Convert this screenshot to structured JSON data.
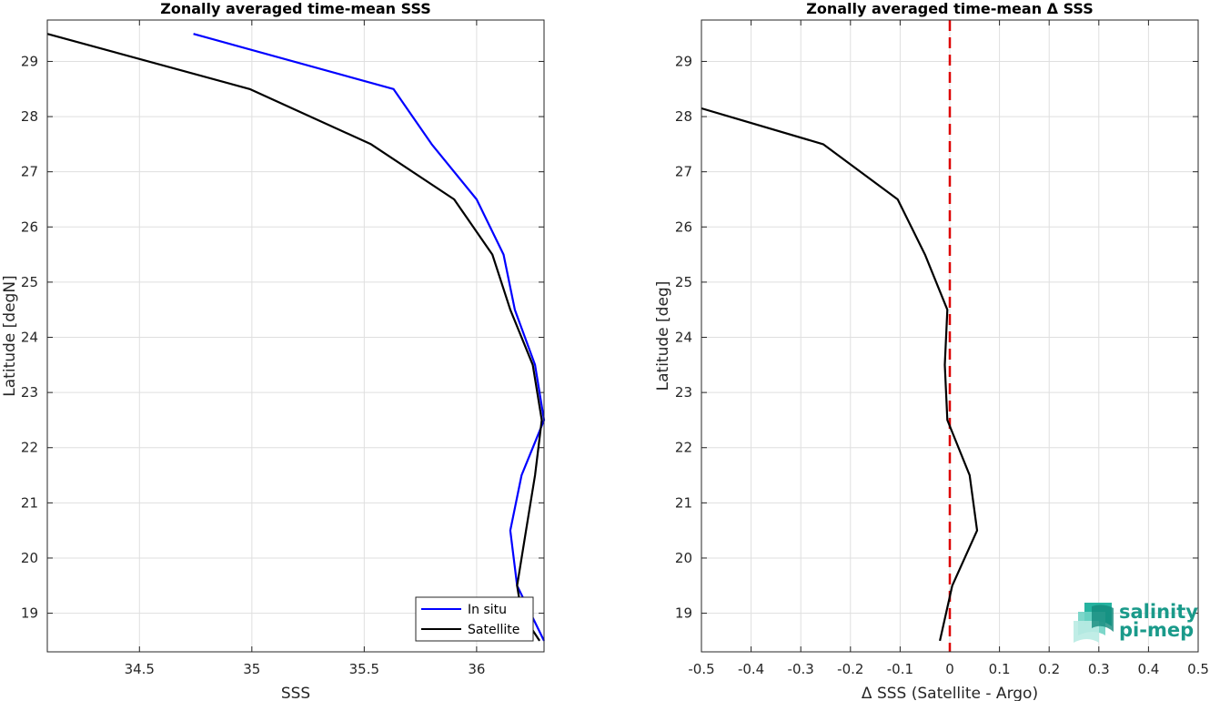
{
  "chart_data": [
    {
      "type": "line",
      "title": "Zonally averaged time-mean SSS",
      "xlabel": "SSS",
      "ylabel": "Latitude [degN]",
      "xlim": [
        34.09,
        36.3
      ],
      "ylim": [
        18.3,
        29.75
      ],
      "xticks": [
        "34.5",
        "35",
        "35.5",
        "36"
      ],
      "xtick_values": [
        34.5,
        35,
        35.5,
        36
      ],
      "yticks": [
        "19",
        "20",
        "21",
        "22",
        "23",
        "24",
        "25",
        "26",
        "27",
        "28",
        "29"
      ],
      "ytick_values": [
        19,
        20,
        21,
        22,
        23,
        24,
        25,
        26,
        27,
        28,
        29
      ],
      "grid": true,
      "legend_position": "bottom-right",
      "series": [
        {
          "name": "In situ",
          "color": "#0000ff",
          "points": [
            [
              34.74,
              29.5
            ],
            [
              35.63,
              28.5
            ],
            [
              35.8,
              27.5
            ],
            [
              36.0,
              26.5
            ],
            [
              36.12,
              25.5
            ],
            [
              36.17,
              24.5
            ],
            [
              36.26,
              23.5
            ],
            [
              36.3,
              22.5
            ],
            [
              36.2,
              21.5
            ],
            [
              36.15,
              20.5
            ],
            [
              36.18,
              19.5
            ],
            [
              36.3,
              18.5
            ]
          ]
        },
        {
          "name": "Satellite",
          "color": "#000000",
          "points": [
            [
              34.09,
              29.5
            ],
            [
              34.99,
              28.5
            ],
            [
              35.53,
              27.5
            ],
            [
              35.9,
              26.5
            ],
            [
              36.07,
              25.5
            ],
            [
              36.15,
              24.5
            ],
            [
              36.25,
              23.5
            ],
            [
              36.29,
              22.5
            ],
            [
              36.26,
              21.5
            ],
            [
              36.22,
              20.5
            ],
            [
              36.18,
              19.5
            ],
            [
              36.2,
              19.0
            ],
            [
              36.28,
              18.5
            ]
          ]
        }
      ]
    },
    {
      "type": "line",
      "title": "Zonally averaged time-mean Δ SSS",
      "xlabel": "Δ SSS (Satellite - Argo)",
      "ylabel": "Latitude [deg]",
      "xlim": [
        -0.5,
        0.5
      ],
      "ylim": [
        18.3,
        29.75
      ],
      "xticks": [
        "-0.5",
        "-0.4",
        "-0.3",
        "-0.2",
        "-0.1",
        "0",
        "0.1",
        "0.2",
        "0.3",
        "0.4",
        "0.5"
      ],
      "xtick_values": [
        -0.5,
        -0.4,
        -0.3,
        -0.2,
        -0.1,
        0,
        0.1,
        0.2,
        0.3,
        0.4,
        0.5
      ],
      "yticks": [
        "19",
        "20",
        "21",
        "22",
        "23",
        "24",
        "25",
        "26",
        "27",
        "28",
        "29"
      ],
      "ytick_values": [
        19,
        20,
        21,
        22,
        23,
        24,
        25,
        26,
        27,
        28,
        29
      ],
      "grid": true,
      "reference_line": {
        "x": 0,
        "color": "#dd0000",
        "style": "dashed"
      },
      "series": [
        {
          "color": "#000000",
          "points": [
            [
              -0.5,
              28.15
            ],
            [
              -0.255,
              27.5
            ],
            [
              -0.105,
              26.5
            ],
            [
              -0.05,
              25.5
            ],
            [
              -0.005,
              24.5
            ],
            [
              -0.01,
              23.5
            ],
            [
              -0.005,
              22.5
            ],
            [
              0.04,
              21.5
            ],
            [
              0.055,
              20.5
            ],
            [
              0.005,
              19.5
            ],
            [
              -0.02,
              18.5
            ]
          ]
        }
      ]
    }
  ],
  "logo": {
    "line1": "salinity",
    "line2": "pi-mep"
  }
}
